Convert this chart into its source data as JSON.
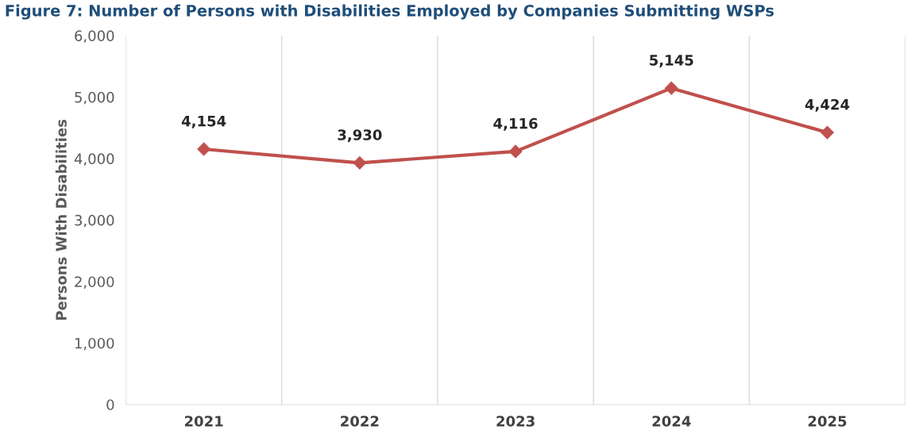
{
  "chart_data": {
    "type": "line",
    "title": "Figure 7: Number of Persons with Disabilities Employed by Companies Submitting WSPs",
    "ylabel": "Persons With Disabilities",
    "categories": [
      "2021",
      "2022",
      "2023",
      "2024",
      "2025"
    ],
    "series": [
      {
        "color": "#c0504d",
        "values": [
          4154,
          3930,
          4116,
          5145,
          4424
        ]
      }
    ],
    "ylim": [
      0,
      6000
    ],
    "yticks": [
      {
        "value": 0,
        "label": "0"
      },
      {
        "value": 1000,
        "label": "1,000"
      },
      {
        "value": 2000,
        "label": "2,000"
      },
      {
        "value": 3000,
        "label": "3,000"
      },
      {
        "value": 4000,
        "label": "4,000"
      },
      {
        "value": 5000,
        "label": "5,000"
      },
      {
        "value": 6000,
        "label": "6,000"
      }
    ],
    "value_labels": [
      "4,154",
      "3,930",
      "4,116",
      "5,145",
      "4,424"
    ],
    "grid": "x",
    "marker": "diamond",
    "line_style": "solid"
  }
}
